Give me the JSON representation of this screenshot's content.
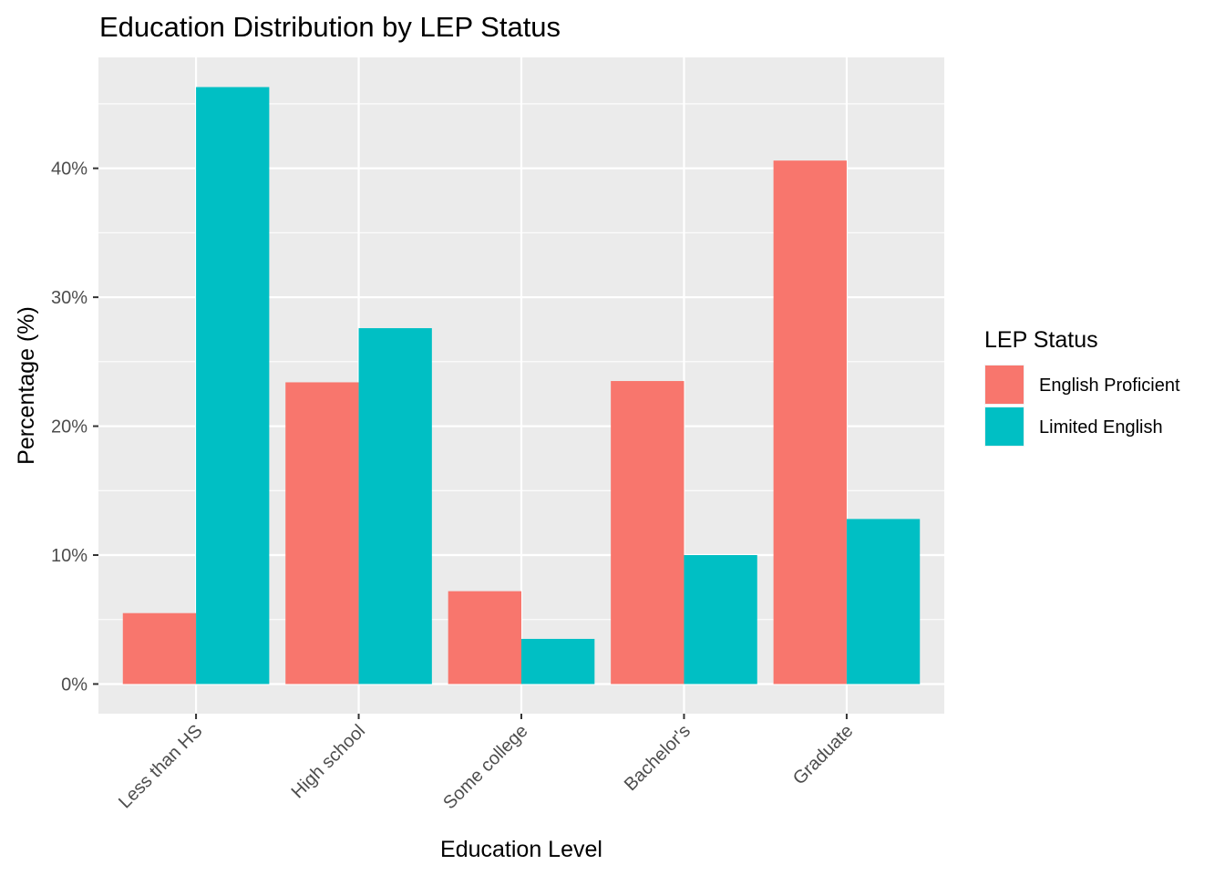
{
  "chart_data": {
    "type": "bar",
    "title": "Education Distribution by LEP Status",
    "xlabel": "Education Level",
    "ylabel": "Percentage (%)",
    "categories": [
      "Less than HS",
      "High school",
      "Some college",
      "Bachelor's",
      "Graduate"
    ],
    "series": [
      {
        "name": "English Proficient",
        "color": "#F8766D",
        "values": [
          5.5,
          23.4,
          7.2,
          23.5,
          40.6
        ]
      },
      {
        "name": "Limited English",
        "color": "#00BFC4",
        "values": [
          46.3,
          27.6,
          3.5,
          10.0,
          12.8
        ]
      }
    ],
    "ylim": [
      -2.3,
      48.6
    ],
    "yticks": [
      0,
      10,
      20,
      30,
      40
    ],
    "ytick_labels": [
      "0%",
      "10%",
      "20%",
      "30%",
      "40%"
    ],
    "grid": true,
    "legend": {
      "title": "LEP Status",
      "position": "right"
    },
    "panel_background": "#EBEBEB",
    "grid_color": "#FFFFFF"
  }
}
